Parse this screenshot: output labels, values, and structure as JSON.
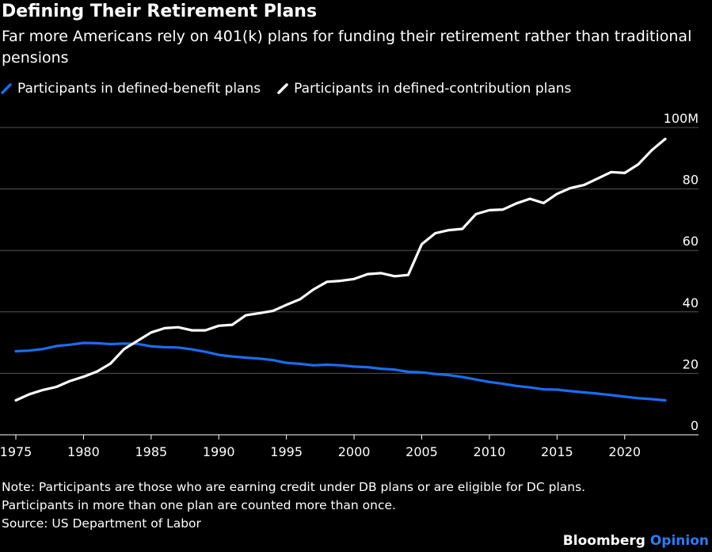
{
  "header": {
    "title": "Defining Their Retirement Plans",
    "subtitle": "Far more Americans rely on 401(k) plans for funding their retirement rather than traditional pensions"
  },
  "colors": {
    "background": "#000000",
    "db_line": "#1a6df0",
    "dc_line": "#ffffff",
    "grid": "#555555",
    "brand_accent": "#2d7cf6"
  },
  "chart_data": {
    "type": "line",
    "x_axis": {
      "min": 1975,
      "max": 2023,
      "ticks": [
        1975,
        1980,
        1985,
        1990,
        1995,
        2000,
        2005,
        2010,
        2015,
        2020
      ],
      "tick_labels": [
        "1975",
        "1980",
        "1985",
        "1990",
        "1995",
        "2000",
        "2005",
        "2010",
        "2015",
        "2020"
      ]
    },
    "y_axis": {
      "min": 0,
      "max": 100,
      "ticks": [
        0,
        20,
        40,
        60,
        80,
        100
      ],
      "tick_labels": [
        "0",
        "20",
        "40",
        "60",
        "80",
        "100M"
      ],
      "position": "right"
    },
    "grid": true,
    "legend_placement": "top-left",
    "series": [
      {
        "name": "Participants in defined-benefit plans",
        "color": "#1a6df0",
        "x": [
          1975,
          1976,
          1977,
          1978,
          1979,
          1980,
          1981,
          1982,
          1983,
          1984,
          1985,
          1986,
          1987,
          1988,
          1989,
          1990,
          1991,
          1992,
          1993,
          1994,
          1995,
          1996,
          1997,
          1998,
          1999,
          2000,
          2001,
          2002,
          2003,
          2004,
          2005,
          2006,
          2007,
          2008,
          2009,
          2010,
          2011,
          2012,
          2013,
          2014,
          2015,
          2016,
          2017,
          2018,
          2019,
          2020,
          2021,
          2022,
          2023
        ],
        "values": [
          27.2,
          27.4,
          27.9,
          28.9,
          29.3,
          29.9,
          29.8,
          29.5,
          29.7,
          29.6,
          28.8,
          28.5,
          28.4,
          27.8,
          27.0,
          26.0,
          25.5,
          25.1,
          24.8,
          24.3,
          23.4,
          23.1,
          22.6,
          22.8,
          22.6,
          22.2,
          22.0,
          21.5,
          21.2,
          20.5,
          20.3,
          19.8,
          19.4,
          18.8,
          18.0,
          17.2,
          16.6,
          15.9,
          15.4,
          14.8,
          14.7,
          14.2,
          13.8,
          13.4,
          12.9,
          12.4,
          11.9,
          11.6,
          11.2
        ]
      },
      {
        "name": "Participants in defined-contribution plans",
        "color": "#ffffff",
        "x": [
          1975,
          1976,
          1977,
          1978,
          1979,
          1980,
          1981,
          1982,
          1983,
          1984,
          1985,
          1986,
          1987,
          1988,
          1989,
          1990,
          1991,
          1992,
          1993,
          1994,
          1995,
          1996,
          1997,
          1998,
          1999,
          2000,
          2001,
          2002,
          2003,
          2004,
          2005,
          2006,
          2007,
          2008,
          2009,
          2010,
          2011,
          2012,
          2013,
          2014,
          2015,
          2016,
          2017,
          2018,
          2019,
          2020,
          2021,
          2022,
          2023
        ],
        "values": [
          11.2,
          13.2,
          14.6,
          15.6,
          17.5,
          18.9,
          20.6,
          23.2,
          27.9,
          30.6,
          33.3,
          34.7,
          35.0,
          34.0,
          34.0,
          35.5,
          35.8,
          38.9,
          39.6,
          40.3,
          42.3,
          44.1,
          47.3,
          49.8,
          50.1,
          50.7,
          52.3,
          52.6,
          51.6,
          52.0,
          62.0,
          65.6,
          66.6,
          67.0,
          71.8,
          73.1,
          73.3,
          75.3,
          76.8,
          75.4,
          78.4,
          80.3,
          81.3,
          83.4,
          85.5,
          85.2,
          88.0,
          92.6,
          96.3
        ]
      }
    ]
  },
  "notes": {
    "line1": "Note: Participants are those who are earning credit under DB plans or are eligible for DC plans.",
    "line2": "Participants in more than one plan are counted more than once.",
    "source": "Source: US Department of Labor"
  },
  "brand": {
    "part1": "Bloomberg",
    "part2": "Opinion"
  }
}
